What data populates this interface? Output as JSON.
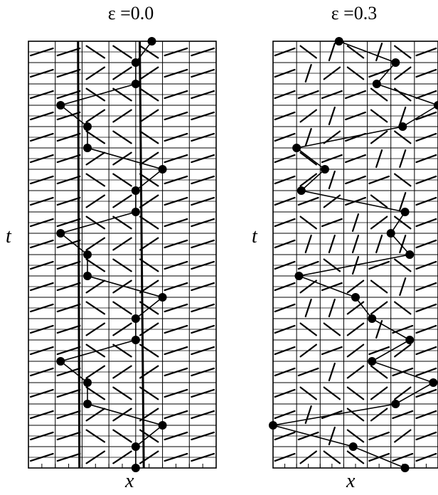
{
  "panels": [
    {
      "id": "left",
      "title": "ε =0.0",
      "xlabel": "x",
      "ylabel": "t"
    },
    {
      "id": "right",
      "title": "ε =0.3",
      "xlabel": "x",
      "ylabel": "t"
    }
  ],
  "grid": {
    "columns": 7,
    "rows": 20,
    "layers_per_cell": 2
  },
  "colors": {
    "ink": "#000000",
    "background": "#ffffff"
  }
}
